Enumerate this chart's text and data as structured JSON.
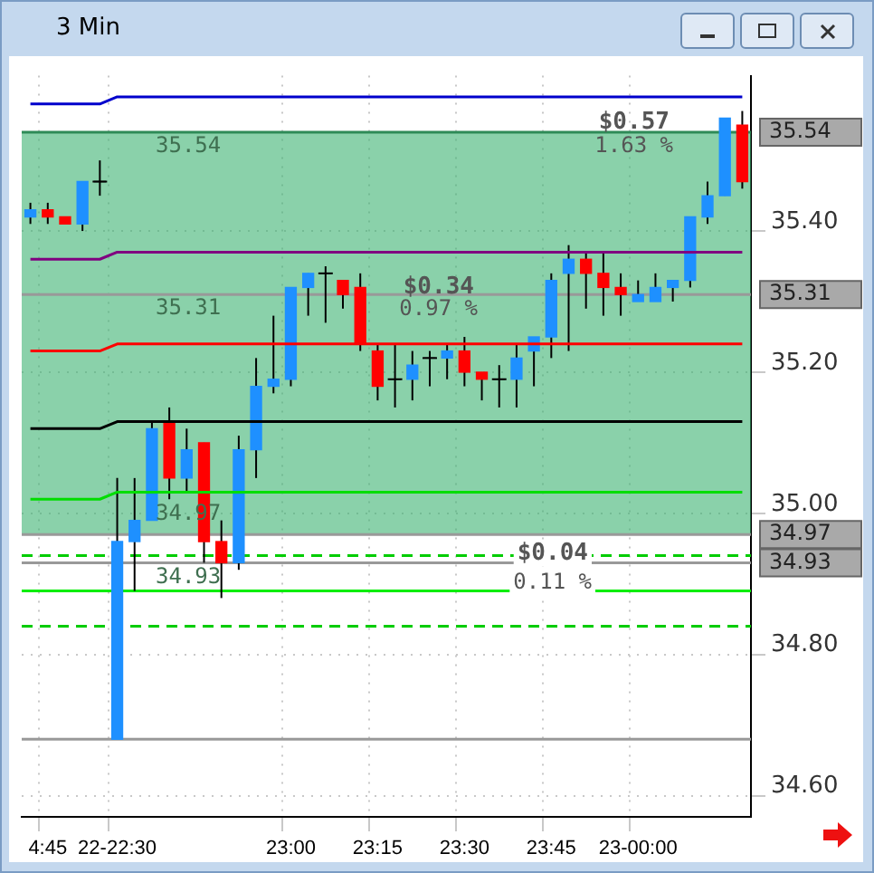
{
  "chart_data": {
    "type": "candlestick",
    "title": "3 Min",
    "categories": [
      null,
      "4:45",
      null,
      null,
      null,
      "22-22:30",
      null,
      null,
      null,
      null,
      null,
      null,
      null,
      null,
      null,
      "23:00",
      null,
      null,
      null,
      null,
      "23:15",
      null,
      null,
      null,
      null,
      "23:30",
      null,
      null,
      null,
      null,
      "23:45",
      null,
      null,
      null,
      null,
      "23-00:00",
      null,
      null,
      null,
      null,
      null,
      null
    ],
    "ohlc": [
      [
        35.42,
        35.44,
        35.41,
        35.43
      ],
      [
        35.43,
        35.44,
        35.41,
        35.42
      ],
      [
        35.42,
        35.42,
        35.41,
        35.41
      ],
      [
        35.41,
        35.47,
        35.4,
        35.47
      ],
      [
        35.47,
        35.5,
        35.45,
        35.47
      ],
      [
        34.68,
        35.05,
        34.68,
        34.96
      ],
      [
        34.96,
        35.05,
        34.89,
        34.99
      ],
      [
        34.99,
        35.13,
        34.99,
        35.12
      ],
      [
        35.13,
        35.15,
        35.02,
        35.05
      ],
      [
        35.05,
        35.12,
        35.03,
        35.09
      ],
      [
        35.1,
        35.1,
        34.93,
        34.96
      ],
      [
        34.96,
        34.99,
        34.88,
        34.93
      ],
      [
        34.93,
        35.11,
        34.92,
        35.09
      ],
      [
        35.09,
        35.22,
        35.05,
        35.18
      ],
      [
        35.18,
        35.28,
        35.17,
        35.19
      ],
      [
        35.19,
        35.32,
        35.18,
        35.32
      ],
      [
        35.32,
        35.34,
        35.28,
        35.34
      ],
      [
        35.34,
        35.35,
        35.27,
        35.34
      ],
      [
        35.33,
        35.33,
        35.29,
        35.31
      ],
      [
        35.32,
        35.34,
        35.23,
        35.24
      ],
      [
        35.23,
        35.24,
        35.16,
        35.18
      ],
      [
        35.19,
        35.24,
        35.15,
        35.19
      ],
      [
        35.19,
        35.23,
        35.16,
        35.21
      ],
      [
        35.22,
        35.23,
        35.18,
        35.22
      ],
      [
        35.22,
        35.24,
        35.19,
        35.23
      ],
      [
        35.23,
        35.25,
        35.18,
        35.2
      ],
      [
        35.2,
        35.2,
        35.16,
        35.19
      ],
      [
        35.19,
        35.21,
        35.15,
        35.19
      ],
      [
        35.19,
        35.24,
        35.15,
        35.22
      ],
      [
        35.23,
        35.25,
        35.18,
        35.25
      ],
      [
        35.25,
        35.34,
        35.22,
        35.33
      ],
      [
        35.34,
        35.38,
        35.23,
        35.36
      ],
      [
        35.36,
        35.37,
        35.29,
        35.34
      ],
      [
        35.34,
        35.37,
        35.28,
        35.32
      ],
      [
        35.32,
        35.34,
        35.28,
        35.31
      ],
      [
        35.3,
        35.33,
        35.3,
        35.31
      ],
      [
        35.3,
        35.34,
        35.3,
        35.32
      ],
      [
        35.32,
        35.33,
        35.3,
        35.33
      ],
      [
        35.33,
        35.42,
        35.32,
        35.42
      ],
      [
        35.42,
        35.47,
        35.41,
        35.45
      ],
      [
        35.45,
        35.56,
        35.45,
        35.56
      ],
      [
        35.55,
        35.57,
        35.46,
        35.47
      ]
    ],
    "colors": [
      "#1e90ff",
      "#ff0000",
      "#ff0000",
      "#1e90ff",
      "#000000",
      "#1e90ff",
      "#1e90ff",
      "#1e90ff",
      "#ff0000",
      "#1e90ff",
      "#ff0000",
      "#ff0000",
      "#1e90ff",
      "#1e90ff",
      "#1e90ff",
      "#1e90ff",
      "#1e90ff",
      "#000000",
      "#ff0000",
      "#ff0000",
      "#ff0000",
      "#000000",
      "#1e90ff",
      "#000000",
      "#1e90ff",
      "#ff0000",
      "#ff0000",
      "#000000",
      "#1e90ff",
      "#1e90ff",
      "#1e90ff",
      "#1e90ff",
      "#ff0000",
      "#ff0000",
      "#ff0000",
      "#1e90ff",
      "#1e90ff",
      "#1e90ff",
      "#1e90ff",
      "#1e90ff",
      "#1e90ff",
      "#ff0000"
    ],
    "series": [
      {
        "type": "line",
        "color": "#0000cc",
        "values": [
          35.58,
          35.58,
          35.58,
          35.58,
          35.58,
          35.59,
          35.59,
          35.59,
          35.59,
          35.59,
          35.59,
          35.59,
          35.59,
          35.59,
          35.59,
          35.59,
          35.59,
          35.59,
          35.59,
          35.59,
          35.59,
          35.59,
          35.59,
          35.59,
          35.59,
          35.59,
          35.59,
          35.59,
          35.59,
          35.59,
          35.59,
          35.59,
          35.59,
          35.59,
          35.59,
          35.59,
          35.59,
          35.59,
          35.59,
          35.59,
          35.59,
          35.59
        ]
      },
      {
        "type": "line",
        "color": "#800080",
        "values": [
          35.36,
          35.36,
          35.36,
          35.36,
          35.36,
          35.37,
          35.37,
          35.37,
          35.37,
          35.37,
          35.37,
          35.37,
          35.37,
          35.37,
          35.37,
          35.37,
          35.37,
          35.37,
          35.37,
          35.37,
          35.37,
          35.37,
          35.37,
          35.37,
          35.37,
          35.37,
          35.37,
          35.37,
          35.37,
          35.37,
          35.37,
          35.37,
          35.37,
          35.37,
          35.37,
          35.37,
          35.37,
          35.37,
          35.37,
          35.37,
          35.37,
          35.37
        ]
      },
      {
        "type": "line",
        "color": "#ff0000",
        "values": [
          35.23,
          35.23,
          35.23,
          35.23,
          35.23,
          35.24,
          35.24,
          35.24,
          35.24,
          35.24,
          35.24,
          35.24,
          35.24,
          35.24,
          35.24,
          35.24,
          35.24,
          35.24,
          35.24,
          35.24,
          35.24,
          35.24,
          35.24,
          35.24,
          35.24,
          35.24,
          35.24,
          35.24,
          35.24,
          35.24,
          35.24,
          35.24,
          35.24,
          35.24,
          35.24,
          35.24,
          35.24,
          35.24,
          35.24,
          35.24,
          35.24,
          35.24
        ]
      },
      {
        "type": "line",
        "color": "#000000",
        "values": [
          35.12,
          35.12,
          35.12,
          35.12,
          35.12,
          35.13,
          35.13,
          35.13,
          35.13,
          35.13,
          35.13,
          35.13,
          35.13,
          35.13,
          35.13,
          35.13,
          35.13,
          35.13,
          35.13,
          35.13,
          35.13,
          35.13,
          35.13,
          35.13,
          35.13,
          35.13,
          35.13,
          35.13,
          35.13,
          35.13,
          35.13,
          35.13,
          35.13,
          35.13,
          35.13,
          35.13,
          35.13,
          35.13,
          35.13,
          35.13,
          35.13,
          35.13
        ]
      },
      {
        "type": "line",
        "color": "#00dd00",
        "values": [
          35.02,
          35.02,
          35.02,
          35.02,
          35.02,
          35.03,
          35.03,
          35.03,
          35.03,
          35.03,
          35.03,
          35.03,
          35.03,
          35.03,
          35.03,
          35.03,
          35.03,
          35.03,
          35.03,
          35.03,
          35.03,
          35.03,
          35.03,
          35.03,
          35.03,
          35.03,
          35.03,
          35.03,
          35.03,
          35.03,
          35.03,
          35.03,
          35.03,
          35.03,
          35.03,
          35.03,
          35.03,
          35.03,
          35.03,
          35.03,
          35.03,
          35.03
        ]
      }
    ],
    "ylim": [
      34.57,
      35.62
    ],
    "yticks": [
      {
        "value": 34.6,
        "label": "34.60"
      },
      {
        "value": 34.8,
        "label": "34.80"
      },
      {
        "value": 35.0,
        "label": "35.00"
      },
      {
        "value": 35.2,
        "label": "35.20"
      },
      {
        "value": 35.4,
        "label": "35.40"
      }
    ],
    "ref_lines": [
      {
        "axis": "y",
        "value": 35.54,
        "label": "35.54",
        "color": "#2e8b57"
      },
      {
        "axis": "y",
        "value": 35.31,
        "label": "35.31",
        "color": "#999999"
      },
      {
        "axis": "y",
        "value": 34.97,
        "label": "34.97",
        "color": "#999999"
      },
      {
        "axis": "y",
        "value": 34.93,
        "label": "34.93",
        "color": "#999999"
      },
      {
        "axis": "y",
        "value": 34.94,
        "color": "#00cc00",
        "line_style": "dashed"
      },
      {
        "axis": "y",
        "value": 34.89,
        "color": "#00ee00"
      },
      {
        "axis": "y",
        "value": 34.84,
        "color": "#00cc00",
        "line_style": "dashed"
      },
      {
        "axis": "y",
        "value": 34.68,
        "color": "#999999"
      }
    ],
    "bands": [
      {
        "axis": "y",
        "from": 34.97,
        "to": 35.54,
        "color": "#3cb371"
      }
    ],
    "annotations": [
      {
        "text": "35.54",
        "y": 35.54
      },
      {
        "text": "35.31",
        "y": 35.31
      },
      {
        "text": "34.97",
        "y": 34.97
      },
      {
        "text": "34.93",
        "y": 34.93
      },
      "$0.57",
      "1.63 %",
      "$0.34",
      "0.97 %",
      "$0.04",
      "0.11 %"
    ],
    "grid": true
  }
}
